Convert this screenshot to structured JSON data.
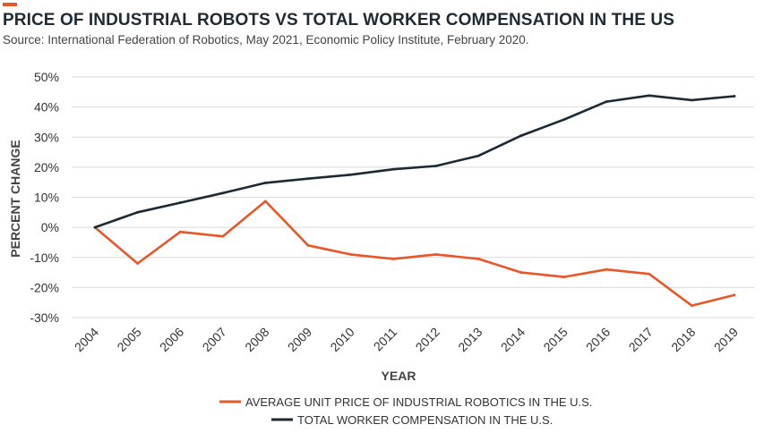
{
  "header": {
    "title": "PRICE OF INDUSTRIAL ROBOTS VS TOTAL WORKER COMPENSATION IN THE US",
    "subtitle": "Source: International Federation of Robotics, May 2021, Economic Policy Institute, February 2020."
  },
  "chart_data": {
    "type": "line",
    "title": "PRICE OF INDUSTRIAL ROBOTS VS TOTAL WORKER COMPENSATION IN THE US",
    "xlabel": "YEAR",
    "ylabel": "PERCENT CHANGE",
    "x": [
      "2004",
      "2005",
      "2006",
      "2007",
      "2008",
      "2009",
      "2010",
      "2011",
      "2012",
      "2013",
      "2014",
      "2015",
      "2016",
      "2017",
      "2018",
      "2019"
    ],
    "ylim": [
      -30,
      50
    ],
    "yticks": [
      50,
      40,
      30,
      20,
      10,
      0,
      -10,
      -20,
      -30
    ],
    "ytick_labels": [
      "50%",
      "40%",
      "30%",
      "20%",
      "10%",
      "0%",
      "-10%",
      "-20%",
      "-30%"
    ],
    "grid": true,
    "legend_position": "bottom",
    "series": [
      {
        "name": "AVERAGE UNIT PRICE OF INDUSTRIAL ROBOTICS IN THE U.S.",
        "color": "#e8572a",
        "values": [
          0,
          -12,
          -1.5,
          -3,
          8.7,
          -6,
          -9,
          -10.5,
          -9,
          -10.5,
          -15,
          -16.5,
          -14,
          -15.5,
          -26,
          -22.5
        ]
      },
      {
        "name": "TOTAL WORKER COMPENSATION IN THE U.S.",
        "color": "#1b2a35",
        "values": [
          0,
          5,
          8.2,
          11.4,
          14.8,
          16.2,
          17.5,
          19.3,
          20.4,
          23.8,
          30.5,
          35.8,
          41.8,
          43.8,
          42.3,
          43.6
        ]
      }
    ]
  },
  "colors": {
    "accent": "#e8572a",
    "grid": "#d9d9d9",
    "text": "#1f2a33"
  }
}
